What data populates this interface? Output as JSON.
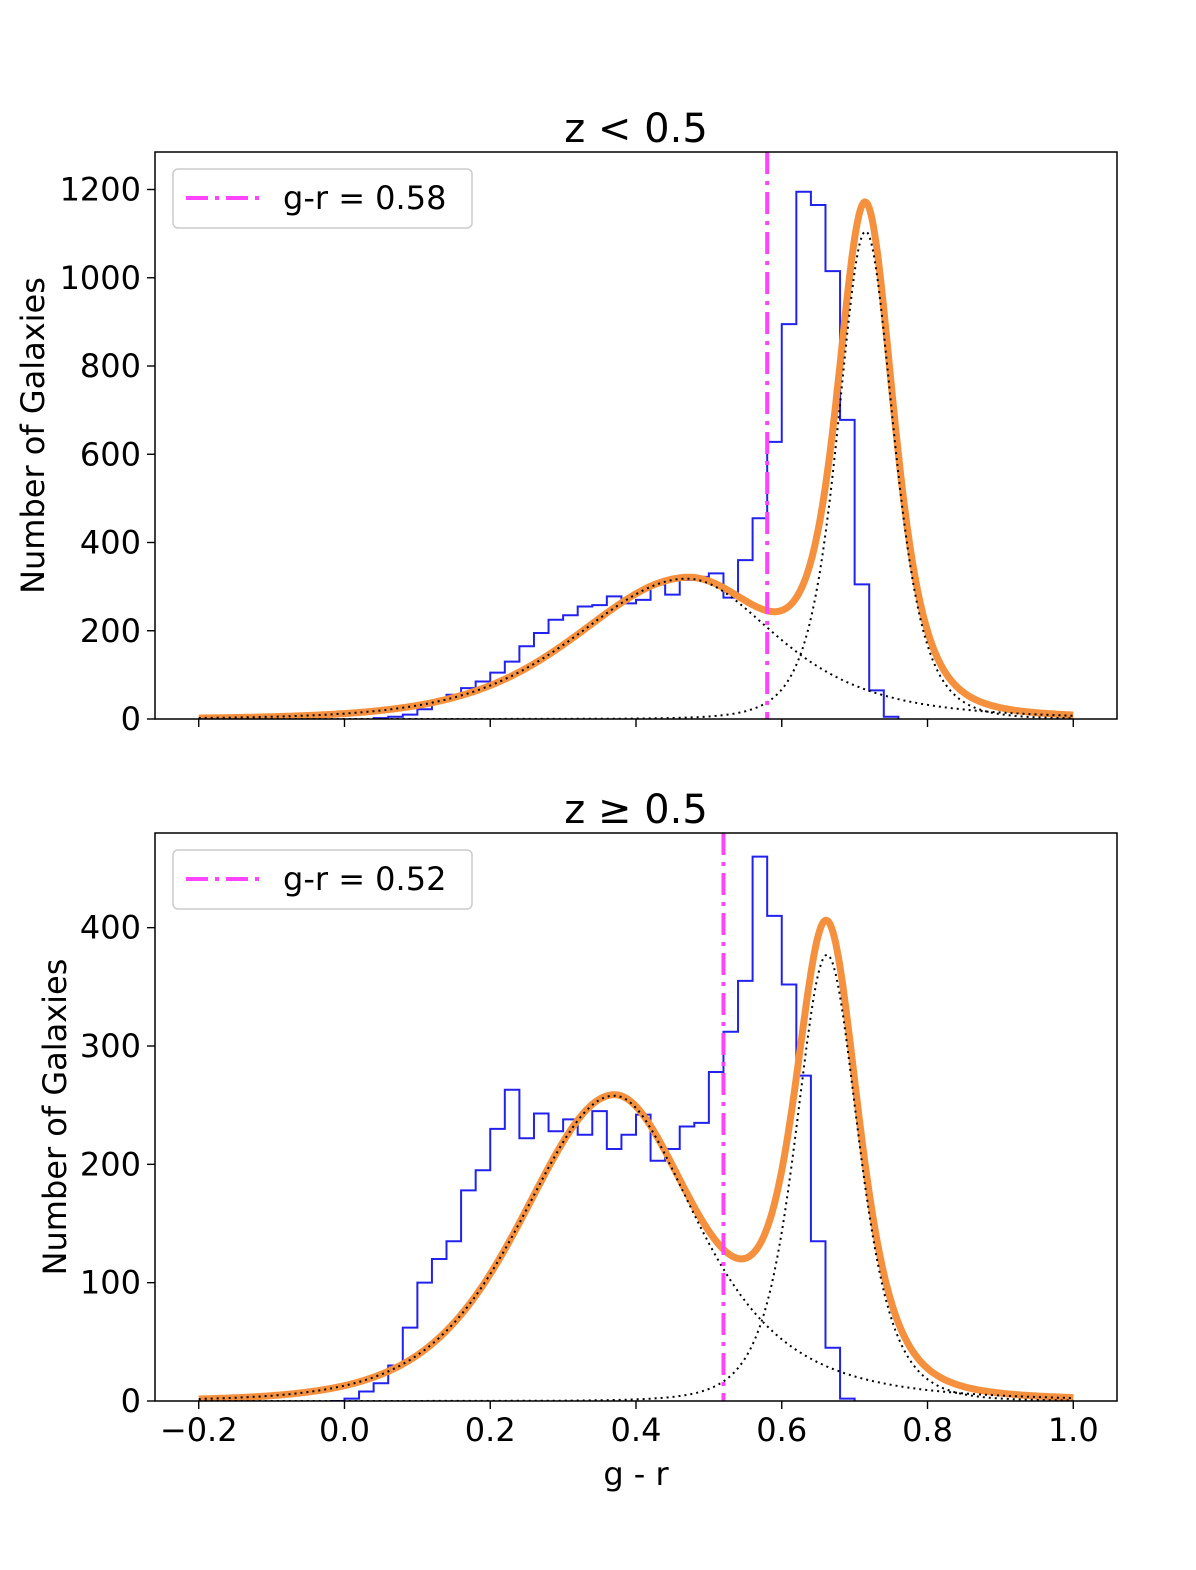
{
  "chart_data": [
    {
      "type": "histogram",
      "title": "z < 0.5",
      "xlabel": "",
      "ylabel": "Number of Galaxies",
      "xlim": [
        -0.26,
        1.06
      ],
      "ylim": [
        0,
        1285
      ],
      "xticks": [
        -0.2,
        0.0,
        0.2,
        0.4,
        0.6,
        0.8,
        1.0
      ],
      "show_xtick_labels": false,
      "yticks": [
        0,
        200,
        400,
        600,
        800,
        1000,
        1200
      ],
      "legend": {
        "label": "g-r = 0.58",
        "placement": "top-left"
      },
      "divider": {
        "x": 0.58,
        "color": "#ff44ff"
      },
      "colors": {
        "histogram": "#2222ee",
        "fit": "#f5913e",
        "components": "#000000"
      },
      "histogram": {
        "bin_width": 0.02,
        "bin_edges_start": 0.04,
        "counts": [
          2,
          5,
          10,
          22,
          42,
          55,
          70,
          85,
          105,
          130,
          165,
          195,
          225,
          235,
          255,
          258,
          278,
          262,
          270,
          305,
          282,
          315,
          322,
          330,
          275,
          360,
          455,
          628,
          895,
          1195,
          1165,
          1015,
          678,
          305,
          65,
          5
        ]
      },
      "fit_components": [
        {
          "mean": 0.47,
          "sigma_left": 0.155,
          "sigma_right": 0.13,
          "amplitude": 318,
          "tail": "wide"
        },
        {
          "mean": 0.715,
          "sigma_left": 0.04,
          "sigma_right": 0.04,
          "amplitude": 1105
        }
      ],
      "curve_x_range": [
        -0.2,
        1.0
      ]
    },
    {
      "type": "histogram",
      "title": "z  ≥  0.5",
      "xlabel": "g - r",
      "ylabel": "Number of Galaxies",
      "xlim": [
        -0.26,
        1.06
      ],
      "ylim": [
        0,
        480
      ],
      "xticks": [
        -0.2,
        0.0,
        0.2,
        0.4,
        0.6,
        0.8,
        1.0
      ],
      "xtick_labels": [
        "−0.2",
        "0.0",
        "0.2",
        "0.4",
        "0.6",
        "0.8",
        "1.0"
      ],
      "show_xtick_labels": true,
      "yticks": [
        0,
        100,
        200,
        300,
        400
      ],
      "legend": {
        "label": "g-r = 0.52",
        "placement": "top-left"
      },
      "divider": {
        "x": 0.52,
        "color": "#ff44ff"
      },
      "colors": {
        "histogram": "#2222ee",
        "fit": "#f5913e",
        "components": "#000000"
      },
      "histogram": {
        "bin_width": 0.02,
        "bin_edges_start": -0.02,
        "counts": [
          0,
          2,
          8,
          15,
          30,
          62,
          100,
          120,
          135,
          178,
          195,
          230,
          263,
          222,
          243,
          228,
          238,
          225,
          245,
          213,
          225,
          242,
          203,
          213,
          232,
          235,
          278,
          312,
          355,
          460,
          410,
          352,
          275,
          135,
          45,
          2
        ]
      },
      "fit_components": [
        {
          "mean": 0.37,
          "sigma_left": 0.13,
          "sigma_right": 0.12,
          "amplitude": 258,
          "tail": "wide"
        },
        {
          "mean": 0.662,
          "sigma_left": 0.045,
          "sigma_right": 0.045,
          "amplitude": 377
        }
      ],
      "curve_x_range": [
        -0.2,
        1.0
      ]
    }
  ]
}
